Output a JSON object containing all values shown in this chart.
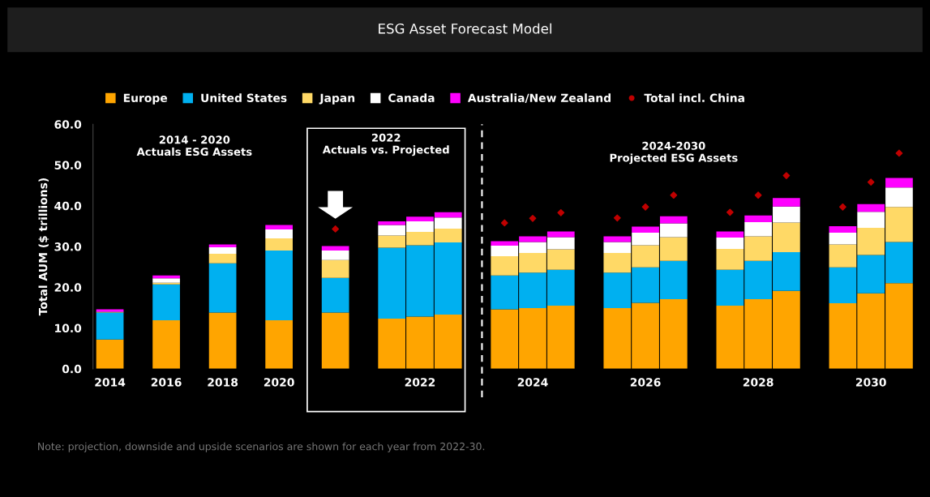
{
  "chart_data": {
    "type": "bar",
    "stacked": true,
    "title": "ESG Asset Forecast Model",
    "ylabel": "Total AUM ($ trillions)",
    "categories": [
      "2014",
      null,
      "2016",
      null,
      "2018",
      null,
      "2020",
      null,
      null,
      null,
      null,
      "2022",
      null,
      null,
      null,
      "2024",
      null,
      null,
      null,
      "2026",
      null,
      null,
      null,
      "2028",
      null,
      null,
      null,
      "2030",
      null
    ],
    "series": [
      {
        "name": "Europe",
        "color": "#ffa500",
        "values": [
          7.2,
          null,
          11.9,
          null,
          13.8,
          null,
          11.9,
          null,
          13.8,
          null,
          12.3,
          12.8,
          13.3,
          null,
          14.6,
          14.9,
          15.5,
          null,
          14.9,
          16.2,
          17.1,
          null,
          15.5,
          17.1,
          19.1,
          null,
          16.1,
          18.5,
          21.0
        ]
      },
      {
        "name": "United States",
        "color": "#00b0f0",
        "values": [
          6.6,
          null,
          8.8,
          null,
          12.1,
          null,
          17.1,
          null,
          8.5,
          null,
          17.4,
          17.5,
          17.7,
          null,
          8.3,
          8.7,
          8.8,
          null,
          8.7,
          8.7,
          9.4,
          null,
          8.8,
          9.4,
          9.5,
          null,
          8.8,
          9.4,
          10.1
        ]
      },
      {
        "name": "Japan",
        "color": "#ffd966",
        "values": [
          0.1,
          null,
          0.4,
          null,
          2.3,
          null,
          3.0,
          null,
          4.4,
          null,
          3.0,
          3.3,
          3.4,
          null,
          4.7,
          4.8,
          5.0,
          null,
          4.8,
          5.4,
          5.8,
          null,
          5.1,
          6.0,
          7.3,
          null,
          5.6,
          6.7,
          8.6
        ]
      },
      {
        "name": "Canada",
        "color": "#ffffff",
        "values": [
          0.1,
          null,
          1.1,
          null,
          1.6,
          null,
          2.2,
          null,
          2.3,
          null,
          2.6,
          2.6,
          2.7,
          null,
          2.6,
          2.7,
          3.0,
          null,
          2.7,
          3.1,
          3.4,
          null,
          2.8,
          3.5,
          3.9,
          null,
          2.9,
          3.9,
          4.8
        ]
      },
      {
        "name": "Australia/New Zealand",
        "color": "#ff00ff",
        "values": [
          0.6,
          null,
          0.7,
          null,
          0.7,
          null,
          1.1,
          null,
          1.1,
          null,
          0.9,
          1.1,
          1.3,
          null,
          1.1,
          1.4,
          1.4,
          null,
          1.4,
          1.5,
          1.7,
          null,
          1.5,
          1.6,
          2.1,
          null,
          1.6,
          1.9,
          2.3
        ]
      },
      {
        "name": "Total incl. China",
        "type": "scatter",
        "marker": "diamond",
        "color": "#c00000",
        "values": [
          null,
          null,
          null,
          null,
          null,
          null,
          null,
          null,
          34.3,
          null,
          null,
          null,
          null,
          null,
          35.8,
          36.9,
          38.3,
          null,
          37.0,
          39.7,
          42.6,
          null,
          38.4,
          42.6,
          47.4,
          null,
          39.7,
          45.8,
          52.9
        ]
      }
    ],
    "ylim": [
      0,
      60
    ],
    "yticks": [
      {
        "value": 0,
        "label": "0.0"
      },
      {
        "value": 10,
        "label": "10.0"
      },
      {
        "value": 20,
        "label": "20.0"
      },
      {
        "value": 30,
        "label": "30.0"
      },
      {
        "value": 40,
        "label": "40.0"
      },
      {
        "value": 50,
        "label": "50.0"
      },
      {
        "value": 60,
        "label": "60.0"
      }
    ],
    "grid": false,
    "legend": "top",
    "annotations": [
      "2014 - 2020\nActuals ESG Assets",
      "2022\nActuals vs. Projected",
      "2024-2030\nProjected ESG Assets",
      "Note: projection, downside and upside scenarios are shown for each year from 2022-30."
    ]
  }
}
